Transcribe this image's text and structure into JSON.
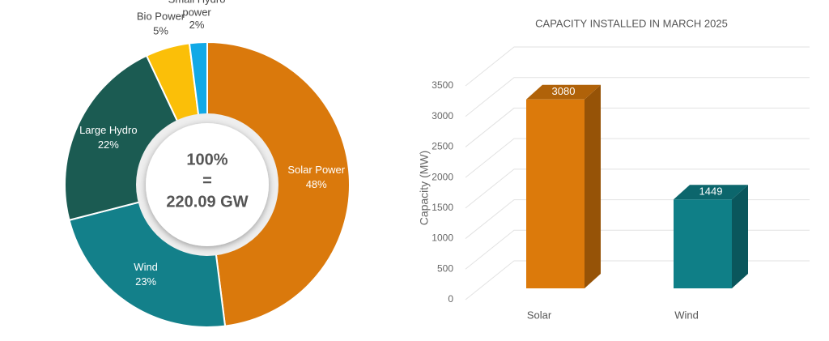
{
  "chart_data": [
    {
      "type": "donut",
      "categories": [
        "Solar Power",
        "Wind",
        "Large Hydro",
        "Bio Power",
        "Small Hydro power"
      ],
      "values": [
        48,
        23,
        22,
        5,
        2
      ],
      "value_labels": [
        "48%",
        "23%",
        "22%",
        "5%",
        "2%"
      ],
      "colors": [
        "#da790c",
        "#13808a",
        "#1b5b52",
        "#fbbf08",
        "#12a9e6"
      ],
      "center_text": [
        "100%",
        "=",
        "220.09 GW"
      ]
    },
    {
      "type": "bar3d",
      "title": "CAPACITY INSTALLED IN MARCH 2025",
      "y_label": "Capacity (MW)",
      "categories": [
        "Solar",
        "Wind"
      ],
      "values": [
        3080,
        1449
      ],
      "colors": [
        "#dc7a0b",
        "#0f7f87"
      ],
      "ylim": [
        0,
        3500
      ],
      "yticks": [
        0,
        500,
        1000,
        1500,
        2000,
        2500,
        3000,
        3500
      ],
      "grid": true
    }
  ]
}
